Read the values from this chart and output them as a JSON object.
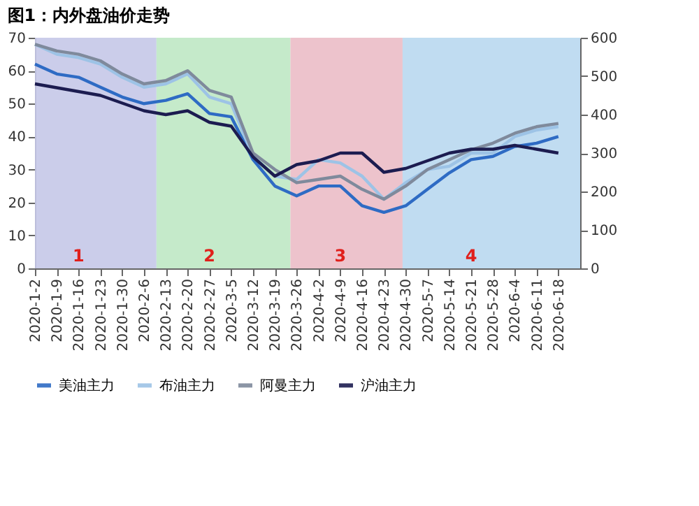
{
  "chart_data": {
    "type": "line",
    "title": "图1：内外盘油价走势",
    "x": [
      "2020-01-02",
      "2020-01-09",
      "2020-01-16",
      "2020-01-23",
      "2020-01-30",
      "2020-02-06",
      "2020-02-13",
      "2020-02-20",
      "2020-02-27",
      "2020-03-05",
      "2020-03-12",
      "2020-03-19",
      "2020-03-26",
      "2020-04-02",
      "2020-04-09",
      "2020-04-16",
      "2020-04-23",
      "2020-04-30",
      "2020-05-07",
      "2020-05-14",
      "2020-05-21",
      "2020-05-28",
      "2020-06-04",
      "2020-06-11",
      "2020-06-18"
    ],
    "xlim": [
      "2020-01-02",
      "2020-06-25"
    ],
    "xticks": [
      {
        "value": "2020-01-02",
        "label": "2020-1-2"
      },
      {
        "value": "2020-01-09",
        "label": "2020-1-9"
      },
      {
        "value": "2020-01-16",
        "label": "2020-1-16"
      },
      {
        "value": "2020-01-23",
        "label": "2020-1-23"
      },
      {
        "value": "2020-01-30",
        "label": "2020-1-30"
      },
      {
        "value": "2020-02-06",
        "label": "2020-2-6"
      },
      {
        "value": "2020-02-13",
        "label": "2020-2-13"
      },
      {
        "value": "2020-02-20",
        "label": "2020-2-20"
      },
      {
        "value": "2020-02-27",
        "label": "2020-2-27"
      },
      {
        "value": "2020-03-05",
        "label": "2020-3-5"
      },
      {
        "value": "2020-03-12",
        "label": "2020-3-12"
      },
      {
        "value": "2020-03-19",
        "label": "2020-3-19"
      },
      {
        "value": "2020-03-26",
        "label": "2020-3-26"
      },
      {
        "value": "2020-04-02",
        "label": "2020-4-2"
      },
      {
        "value": "2020-04-09",
        "label": "2020-4-9"
      },
      {
        "value": "2020-04-16",
        "label": "2020-4-16"
      },
      {
        "value": "2020-04-23",
        "label": "2020-4-23"
      },
      {
        "value": "2020-04-30",
        "label": "2020-4-30"
      },
      {
        "value": "2020-05-07",
        "label": "2020-5-7"
      },
      {
        "value": "2020-05-14",
        "label": "2020-5-14"
      },
      {
        "value": "2020-05-21",
        "label": "2020-5-21"
      },
      {
        "value": "2020-05-28",
        "label": "2020-5-28"
      },
      {
        "value": "2020-06-04",
        "label": "2020-6-4"
      },
      {
        "value": "2020-06-11",
        "label": "2020-6-11"
      },
      {
        "value": "2020-06-18",
        "label": "2020-6-18"
      }
    ],
    "ylim": [
      0,
      70
    ],
    "yticks": [
      0,
      10,
      20,
      30,
      40,
      50,
      60,
      70
    ],
    "y2lim": [
      0,
      600
    ],
    "y2ticks": [
      0,
      100,
      200,
      300,
      400,
      500,
      600
    ],
    "series": [
      {
        "name": "美油主力",
        "color": "#2e6bc4",
        "values": [
          62,
          59,
          58,
          55,
          52,
          50,
          51,
          53,
          47,
          46,
          33,
          25,
          22,
          25,
          25,
          19,
          17,
          19,
          24,
          29,
          33,
          34,
          37,
          38,
          40
        ]
      },
      {
        "name": "布油主力",
        "color": "#9dc3e6",
        "values": [
          68,
          65,
          64,
          62,
          58,
          55,
          56,
          59,
          52,
          50,
          34,
          28,
          27,
          33,
          32,
          28,
          21,
          26,
          30,
          31,
          35,
          35,
          40,
          42,
          43
        ]
      },
      {
        "name": "阿曼主力",
        "color": "#7f8a9c",
        "values": [
          68,
          66,
          65,
          63,
          59,
          56,
          57,
          60,
          54,
          52,
          35,
          30,
          26,
          27,
          28,
          24,
          21,
          25,
          30,
          33,
          36,
          38,
          41,
          43,
          44
        ]
      },
      {
        "name": "沪油主力",
        "color": "#1c1c50",
        "axis": "y2",
        "values": [
          480,
          470,
          460,
          450,
          430,
          410,
          400,
          410,
          380,
          370,
          290,
          240,
          270,
          280,
          300,
          300,
          250,
          260,
          280,
          300,
          310,
          310,
          320,
          310,
          300
        ]
      }
    ],
    "bands": [
      {
        "axis": "x",
        "from": "2020-01-02",
        "to": "2020-02-10",
        "color": "#c5c8e8"
      },
      {
        "axis": "x",
        "from": "2020-02-10",
        "to": "2020-03-24",
        "color": "#bfe8c4"
      },
      {
        "axis": "x",
        "from": "2020-03-24",
        "to": "2020-04-29",
        "color": "#ebbcc6"
      },
      {
        "axis": "x",
        "from": "2020-04-29",
        "to": "2020-06-25",
        "color": "#b9d8ef"
      }
    ],
    "annotations": [
      "1",
      "2",
      "3",
      "4"
    ],
    "legend": "bottom",
    "grid": false,
    "line_style": "solid",
    "marker": "none"
  }
}
